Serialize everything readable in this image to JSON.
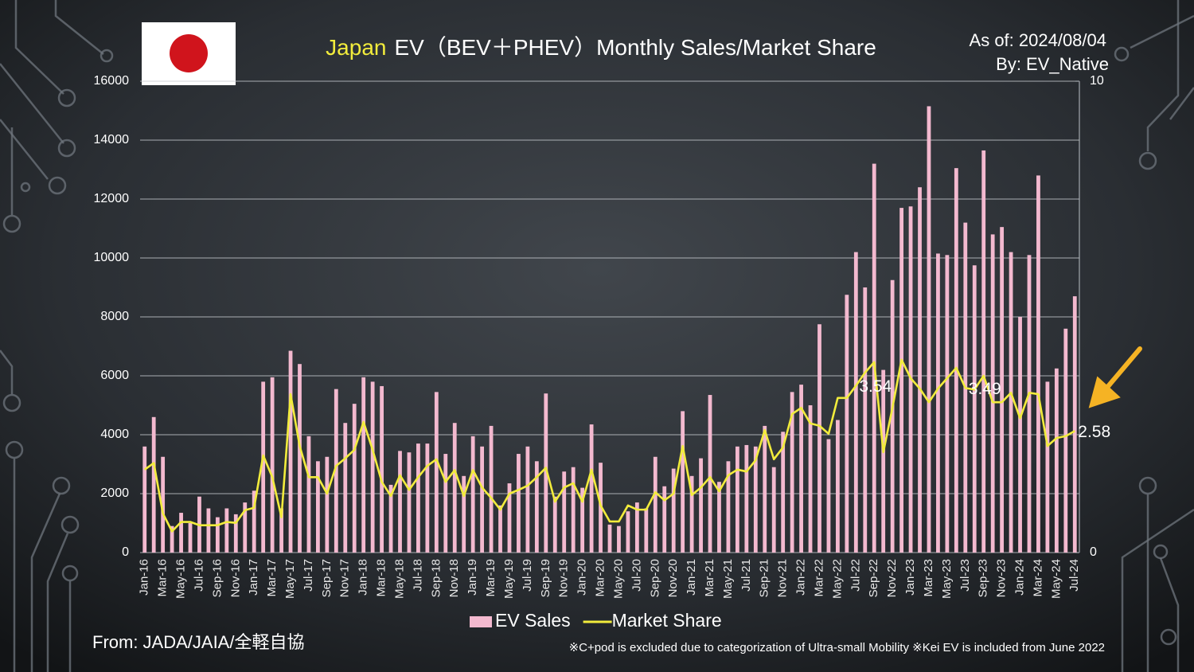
{
  "chart_data": {
    "type": "bar",
    "title": [
      "Japan",
      "EV（BEV＋PHEV）Monthly Sales/Market Share"
    ],
    "as_of": "As of: 2024/08/04",
    "author": "By: EV_Native",
    "source": "From: JADA/JAIA/全軽自協",
    "footnote": "※C+pod is excluded due to categorization of Ultra-small Mobility ※Kei EV is included from June 2022",
    "categories": [
      "Jan-16",
      null,
      "Mar-16",
      null,
      "May-16",
      null,
      "Jul-16",
      null,
      "Sep-16",
      null,
      "Nov-16",
      null,
      "Jan-17",
      null,
      "Mar-17",
      null,
      "May-17",
      null,
      "Jul-17",
      null,
      "Sep-17",
      null,
      "Nov-17",
      null,
      "Jan-18",
      null,
      "Mar-18",
      null,
      "May-18",
      null,
      "Jul-18",
      null,
      "Sep-18",
      null,
      "Nov-18",
      null,
      "Jan-19",
      null,
      "Mar-19",
      null,
      "May-19",
      null,
      "Jul-19",
      null,
      "Sep-19",
      null,
      "Nov-19",
      null,
      "Jan-20",
      null,
      "Mar-20",
      null,
      "May-20",
      null,
      "Jul-20",
      null,
      "Sep-20",
      null,
      "Nov-20",
      null,
      "Jan-21",
      null,
      "Mar-21",
      null,
      "May-21",
      null,
      "Jul-21",
      null,
      "Sep-21",
      null,
      "Nov-21",
      null,
      "Jan-22",
      null,
      "Mar-22",
      null,
      "May-22",
      null,
      "Jul-22",
      null,
      "Sep-22",
      null,
      "Nov-22",
      null,
      "Jan-23",
      null,
      "Mar-23",
      null,
      "May-23",
      null,
      "Jul-23",
      null,
      "Sep-23",
      null,
      "Nov-23",
      null,
      "Jan-24",
      null,
      "Mar-24",
      null,
      "May-24",
      null,
      "Jul-24"
    ],
    "series": [
      {
        "name": "EV Sales",
        "type": "bar",
        "color": "#f3b9cf",
        "values": [
          3600,
          4600,
          3250,
          900,
          1350,
          1000,
          1900,
          1500,
          1200,
          1500,
          1300,
          1700,
          2100,
          5800,
          5950,
          1500,
          6850,
          6400,
          3950,
          3100,
          3250,
          5550,
          4400,
          5050,
          5950,
          5800,
          5650,
          2300,
          3450,
          3400,
          3700,
          3700,
          5450,
          3350,
          4400,
          2600,
          3950,
          3600,
          4300,
          1600,
          2350,
          3350,
          3600,
          3100,
          5400,
          1900,
          2750,
          2900,
          2200,
          4350,
          3050,
          950,
          900,
          1400,
          1700,
          1500,
          3250,
          2250,
          2850,
          4800,
          2600,
          3200,
          5350,
          2400,
          3100,
          3600,
          3650,
          3600,
          4300,
          2900,
          4100,
          5450,
          5700,
          5000,
          7750,
          3850,
          4500,
          8750,
          10200,
          9000,
          13200,
          6200,
          9250,
          11700,
          11750,
          12400,
          15150,
          10150,
          10100,
          13050,
          11200,
          9750,
          13650,
          10800,
          11050,
          10200,
          8000,
          10100,
          12800,
          5800,
          6250,
          7600,
          8700
        ]
      },
      {
        "name": "Market Share",
        "type": "line",
        "axis": "y2",
        "color": "#f2ec3c",
        "values": [
          1.76,
          1.9,
          0.83,
          0.45,
          0.65,
          0.65,
          0.58,
          0.58,
          0.58,
          0.65,
          0.63,
          0.9,
          0.95,
          2.06,
          1.6,
          0.75,
          3.36,
          2.26,
          1.6,
          1.6,
          1.25,
          1.84,
          2.0,
          2.18,
          2.77,
          2.18,
          1.5,
          1.2,
          1.64,
          1.33,
          1.6,
          1.84,
          1.98,
          1.5,
          1.75,
          1.2,
          1.75,
          1.38,
          1.16,
          0.91,
          1.25,
          1.33,
          1.42,
          1.6,
          1.8,
          1.08,
          1.38,
          1.47,
          1.08,
          1.76,
          1.0,
          0.66,
          0.66,
          1.0,
          0.91,
          0.91,
          1.28,
          1.11,
          1.25,
          2.26,
          1.22,
          1.38,
          1.6,
          1.3,
          1.64,
          1.76,
          1.72,
          1.96,
          2.6,
          1.98,
          2.23,
          2.94,
          3.07,
          2.74,
          2.69,
          2.52,
          3.28,
          3.28,
          3.54,
          3.82,
          4.04,
          2.13,
          3.07,
          4.09,
          3.7,
          3.48,
          3.19,
          3.48,
          3.7,
          3.92,
          3.49,
          3.46,
          3.75,
          3.19,
          3.19,
          3.39,
          2.85,
          3.39,
          3.36,
          2.26,
          2.43,
          2.47,
          2.58
        ],
        "value_labels": [
          null,
          null,
          null,
          null,
          null,
          null,
          null,
          null,
          null,
          null,
          null,
          null,
          null,
          null,
          null,
          null,
          null,
          null,
          null,
          null,
          null,
          null,
          null,
          null,
          null,
          null,
          null,
          null,
          null,
          null,
          null,
          null,
          null,
          null,
          null,
          null,
          null,
          null,
          null,
          null,
          null,
          null,
          null,
          null,
          null,
          null,
          null,
          null,
          null,
          null,
          null,
          null,
          null,
          null,
          null,
          null,
          null,
          null,
          null,
          null,
          null,
          null,
          null,
          null,
          null,
          null,
          null,
          null,
          null,
          null,
          null,
          null,
          null,
          null,
          null,
          null,
          null,
          null,
          "3.54",
          null,
          null,
          null,
          null,
          null,
          null,
          null,
          null,
          null,
          null,
          null,
          "3.49",
          null,
          null,
          null,
          null,
          null,
          null,
          null,
          null,
          null,
          null,
          null,
          "2.58"
        ]
      }
    ],
    "ylim": [
      0,
      16000
    ],
    "yticks": [
      0,
      2000,
      4000,
      6000,
      8000,
      10000,
      12000,
      14000,
      16000
    ],
    "y2lim": [
      0,
      10
    ],
    "y2ticks": [
      0,
      10
    ],
    "grid": true,
    "legend": "bottom"
  }
}
